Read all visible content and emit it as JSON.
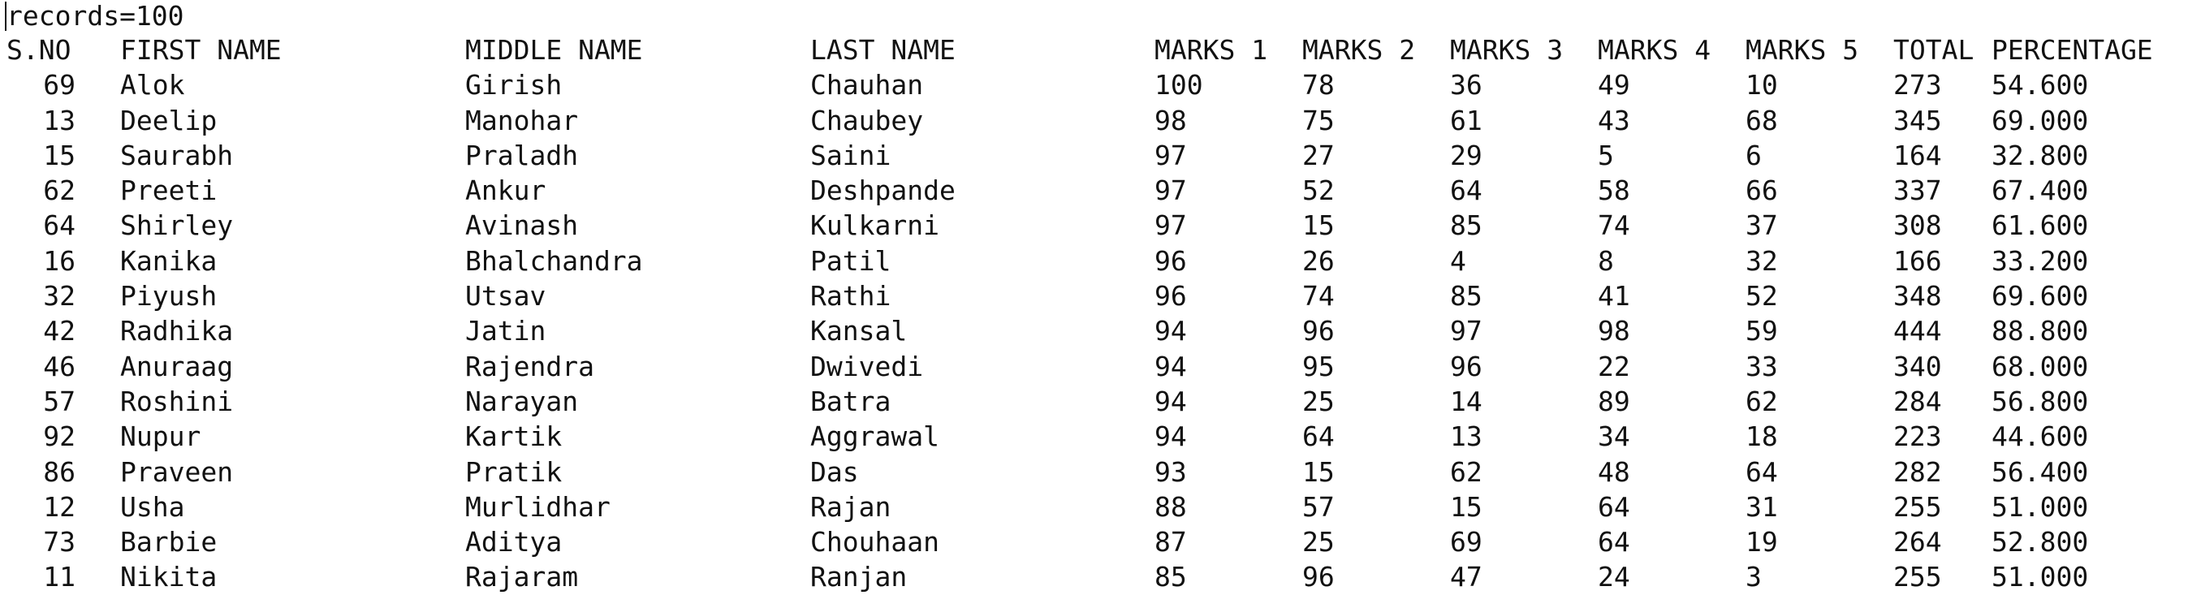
{
  "records_line": "records=100",
  "headers": {
    "sno": "S.NO",
    "first": "FIRST NAME",
    "middle": "MIDDLE NAME",
    "last": "LAST NAME",
    "m1": "MARKS 1",
    "m2": "MARKS 2",
    "m3": "MARKS 3",
    "m4": "MARKS 4",
    "m5": "MARKS 5",
    "total": "TOTAL",
    "pct": "PERCENTAGE"
  },
  "rows": [
    {
      "sno": "69",
      "first": "Alok",
      "middle": "Girish",
      "last": "Chauhan",
      "m1": "100",
      "m2": "78",
      "m3": "36",
      "m4": "49",
      "m5": "10",
      "total": "273",
      "pct": "54.600"
    },
    {
      "sno": "13",
      "first": "Deelip",
      "middle": "Manohar",
      "last": "Chaubey",
      "m1": "98",
      "m2": "75",
      "m3": "61",
      "m4": "43",
      "m5": "68",
      "total": "345",
      "pct": "69.000"
    },
    {
      "sno": "15",
      "first": "Saurabh",
      "middle": "Praladh",
      "last": "Saini",
      "m1": "97",
      "m2": "27",
      "m3": "29",
      "m4": "5",
      "m5": "6",
      "total": "164",
      "pct": "32.800"
    },
    {
      "sno": "62",
      "first": "Preeti",
      "middle": "Ankur",
      "last": "Deshpande",
      "m1": "97",
      "m2": "52",
      "m3": "64",
      "m4": "58",
      "m5": "66",
      "total": "337",
      "pct": "67.400"
    },
    {
      "sno": "64",
      "first": "Shirley",
      "middle": "Avinash",
      "last": "Kulkarni",
      "m1": "97",
      "m2": "15",
      "m3": "85",
      "m4": "74",
      "m5": "37",
      "total": "308",
      "pct": "61.600"
    },
    {
      "sno": "16",
      "first": "Kanika",
      "middle": "Bhalchandra",
      "last": "Patil",
      "m1": "96",
      "m2": "26",
      "m3": "4",
      "m4": "8",
      "m5": "32",
      "total": "166",
      "pct": "33.200"
    },
    {
      "sno": "32",
      "first": "Piyush",
      "middle": "Utsav",
      "last": "Rathi",
      "m1": "96",
      "m2": "74",
      "m3": "85",
      "m4": "41",
      "m5": "52",
      "total": "348",
      "pct": "69.600"
    },
    {
      "sno": "42",
      "first": "Radhika",
      "middle": "Jatin",
      "last": "Kansal",
      "m1": "94",
      "m2": "96",
      "m3": "97",
      "m4": "98",
      "m5": "59",
      "total": "444",
      "pct": "88.800"
    },
    {
      "sno": "46",
      "first": "Anuraag",
      "middle": "Rajendra",
      "last": "Dwivedi",
      "m1": "94",
      "m2": "95",
      "m3": "96",
      "m4": "22",
      "m5": "33",
      "total": "340",
      "pct": "68.000"
    },
    {
      "sno": "57",
      "first": "Roshini",
      "middle": "Narayan",
      "last": "Batra",
      "m1": "94",
      "m2": "25",
      "m3": "14",
      "m4": "89",
      "m5": "62",
      "total": "284",
      "pct": "56.800"
    },
    {
      "sno": "92",
      "first": "Nupur",
      "middle": "Kartik",
      "last": "Aggrawal",
      "m1": "94",
      "m2": "64",
      "m3": "13",
      "m4": "34",
      "m5": "18",
      "total": "223",
      "pct": "44.600"
    },
    {
      "sno": "86",
      "first": "Praveen",
      "middle": "Pratik",
      "last": "Das",
      "m1": "93",
      "m2": "15",
      "m3": "62",
      "m4": "48",
      "m5": "64",
      "total": "282",
      "pct": "56.400"
    },
    {
      "sno": "12",
      "first": "Usha",
      "middle": "Murlidhar",
      "last": "Rajan",
      "m1": "88",
      "m2": "57",
      "m3": "15",
      "m4": "64",
      "m5": "31",
      "total": "255",
      "pct": "51.000"
    },
    {
      "sno": "73",
      "first": "Barbie",
      "middle": "Aditya",
      "last": "Chouhaan",
      "m1": "87",
      "m2": "25",
      "m3": "69",
      "m4": "64",
      "m5": "19",
      "total": "264",
      "pct": "52.800"
    },
    {
      "sno": "11",
      "first": "Nikita",
      "middle": "Rajaram",
      "last": "Ranjan",
      "m1": "85",
      "m2": "96",
      "m3": "47",
      "m4": "24",
      "m5": "3",
      "total": "255",
      "pct": "51.000"
    }
  ]
}
